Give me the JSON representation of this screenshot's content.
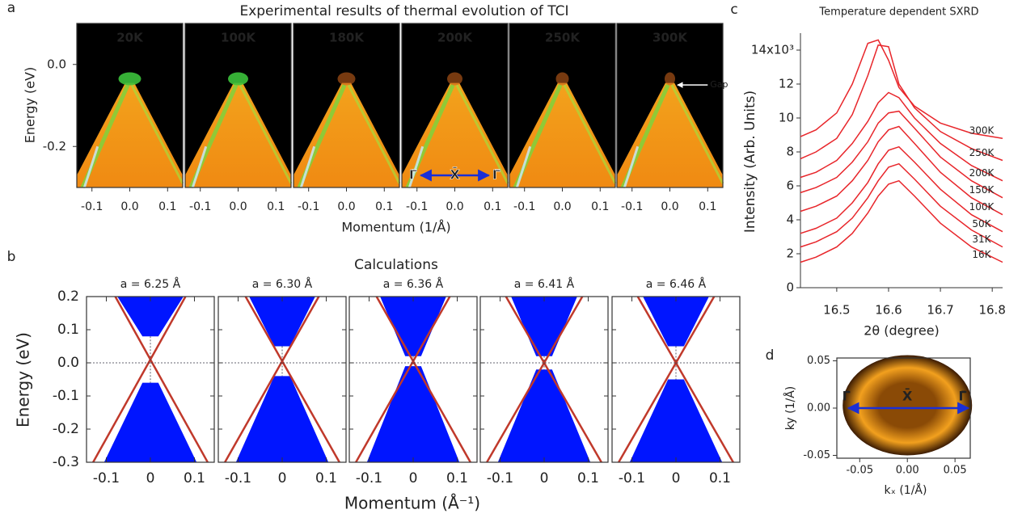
{
  "chart_data": [
    {
      "type": "arpes",
      "panel_label": "a",
      "title": "Experimental results of thermal evolution of TCI",
      "xlabel": "Momentum (1/Å)",
      "ylabel": "Energy (eV)",
      "xlim": [
        -0.14,
        0.14
      ],
      "ylim": [
        -0.3,
        0.1
      ],
      "xticks": [
        -0.1,
        {
          "value": 0,
          "label": "0.0"
        },
        0.1
      ],
      "yticks": [
        {
          "value": 0,
          "label": "0.0"
        },
        -0.2
      ],
      "subplots": [
        {
          "title": "20K"
        },
        {
          "title": "100K"
        },
        {
          "title": "180K"
        },
        {
          "title": "200K"
        },
        {
          "title": "250K"
        },
        {
          "title": "300K"
        }
      ],
      "annotations": {
        "gap": "Gap",
        "path": [
          "Γ̄",
          "X̄",
          "Γ̄"
        ]
      }
    },
    {
      "type": "bands",
      "panel_label": "b",
      "title": "Calculations",
      "xlabel": "Momentum (Å⁻¹)",
      "ylabel": "Energy (eV)",
      "xlim": [
        -0.145,
        0.145
      ],
      "ylim": [
        -0.3,
        0.2
      ],
      "xticks": [
        -0.1,
        0,
        0.1
      ],
      "yticks": [
        0.2,
        0.1,
        {
          "value": 0,
          "label": "0.0"
        },
        -0.1,
        -0.2,
        -0.3
      ],
      "subplots": [
        {
          "title": "a = 6.25 Å",
          "conduction_min": 0.08,
          "valence_max": -0.06
        },
        {
          "title": "a = 6.30 Å",
          "conduction_min": 0.05,
          "valence_max": -0.04
        },
        {
          "title": "a = 6.36 Å",
          "conduction_min": 0.02,
          "valence_max": -0.01
        },
        {
          "title": "a = 6.41 Å",
          "conduction_min": 0.02,
          "valence_max": -0.02
        },
        {
          "title": "a = 6.46 Å",
          "conduction_min": 0.05,
          "valence_max": -0.05
        }
      ]
    },
    {
      "type": "line",
      "panel_label": "c",
      "title": "Temperature dependent SXRD",
      "xlabel": "2θ (degree)",
      "ylabel": "Intensity (Arb. Units)",
      "xlim": [
        16.43,
        16.82
      ],
      "ylim": [
        0,
        15000
      ],
      "xticks": [
        16.5,
        16.6,
        16.7,
        16.8
      ],
      "yticks": [
        0,
        {
          "value": 2000,
          "label": "2"
        },
        {
          "value": 4000,
          "label": "4"
        },
        {
          "value": 6000,
          "label": "6"
        },
        {
          "value": 8000,
          "label": "8"
        },
        {
          "value": 10000,
          "label": "10"
        },
        {
          "value": 12000,
          "label": "12"
        },
        {
          "value": 14000,
          "label": "14x10³"
        }
      ],
      "x": [
        16.43,
        16.46,
        16.5,
        16.53,
        16.56,
        16.58,
        16.6,
        16.62,
        16.65,
        16.7,
        16.76,
        16.82
      ],
      "series": [
        {
          "name": "300K",
          "color": "#e8262b",
          "values": [
            8900,
            9300,
            10300,
            12000,
            14400,
            14600,
            13400,
            11800,
            10700,
            9700,
            9100,
            8800
          ]
        },
        {
          "name": "250K",
          "color": "#e8262b",
          "values": [
            7600,
            8000,
            8800,
            10200,
            12500,
            14300,
            14200,
            12000,
            10600,
            9200,
            8200,
            7500
          ]
        },
        {
          "name": "200K",
          "color": "#e8262b",
          "values": [
            6500,
            6800,
            7500,
            8500,
            9800,
            10900,
            11500,
            11200,
            10000,
            8500,
            7200,
            6300
          ]
        },
        {
          "name": "150K",
          "color": "#e8262b",
          "values": [
            5600,
            5900,
            6500,
            7400,
            8600,
            9700,
            10300,
            10400,
            9400,
            7700,
            6300,
            5300
          ]
        },
        {
          "name": "100K",
          "color": "#e8262b",
          "values": [
            4500,
            4800,
            5400,
            6300,
            7500,
            8600,
            9300,
            9500,
            8500,
            6800,
            5300,
            4300
          ]
        },
        {
          "name": "50K",
          "color": "#e8262b",
          "values": [
            3200,
            3500,
            4100,
            5000,
            6200,
            7300,
            8100,
            8300,
            7400,
            5800,
            4300,
            3300
          ]
        },
        {
          "name": "31K",
          "color": "#e8262b",
          "values": [
            2400,
            2700,
            3300,
            4100,
            5300,
            6300,
            7100,
            7300,
            6400,
            4800,
            3400,
            2400
          ]
        },
        {
          "name": "16K",
          "color": "#e8262b",
          "values": [
            1500,
            1800,
            2400,
            3200,
            4400,
            5400,
            6100,
            6300,
            5400,
            3800,
            2400,
            1500
          ]
        }
      ]
    },
    {
      "type": "map",
      "panel_label": "d",
      "xlabel": "kₓ (1/Å)",
      "ylabel": "ky (1/Å)",
      "xlim": [
        -0.074,
        0.066
      ],
      "ylim": [
        -0.053,
        0.053
      ],
      "xticks": [
        -0.05,
        {
          "value": 0,
          "label": "0.00"
        },
        0.05
      ],
      "yticks": [
        0.05,
        {
          "value": 0,
          "label": "0.00"
        },
        -0.05
      ],
      "annotations": {
        "path": [
          "Γ̄",
          "X̄",
          "Γ̄"
        ]
      }
    }
  ]
}
